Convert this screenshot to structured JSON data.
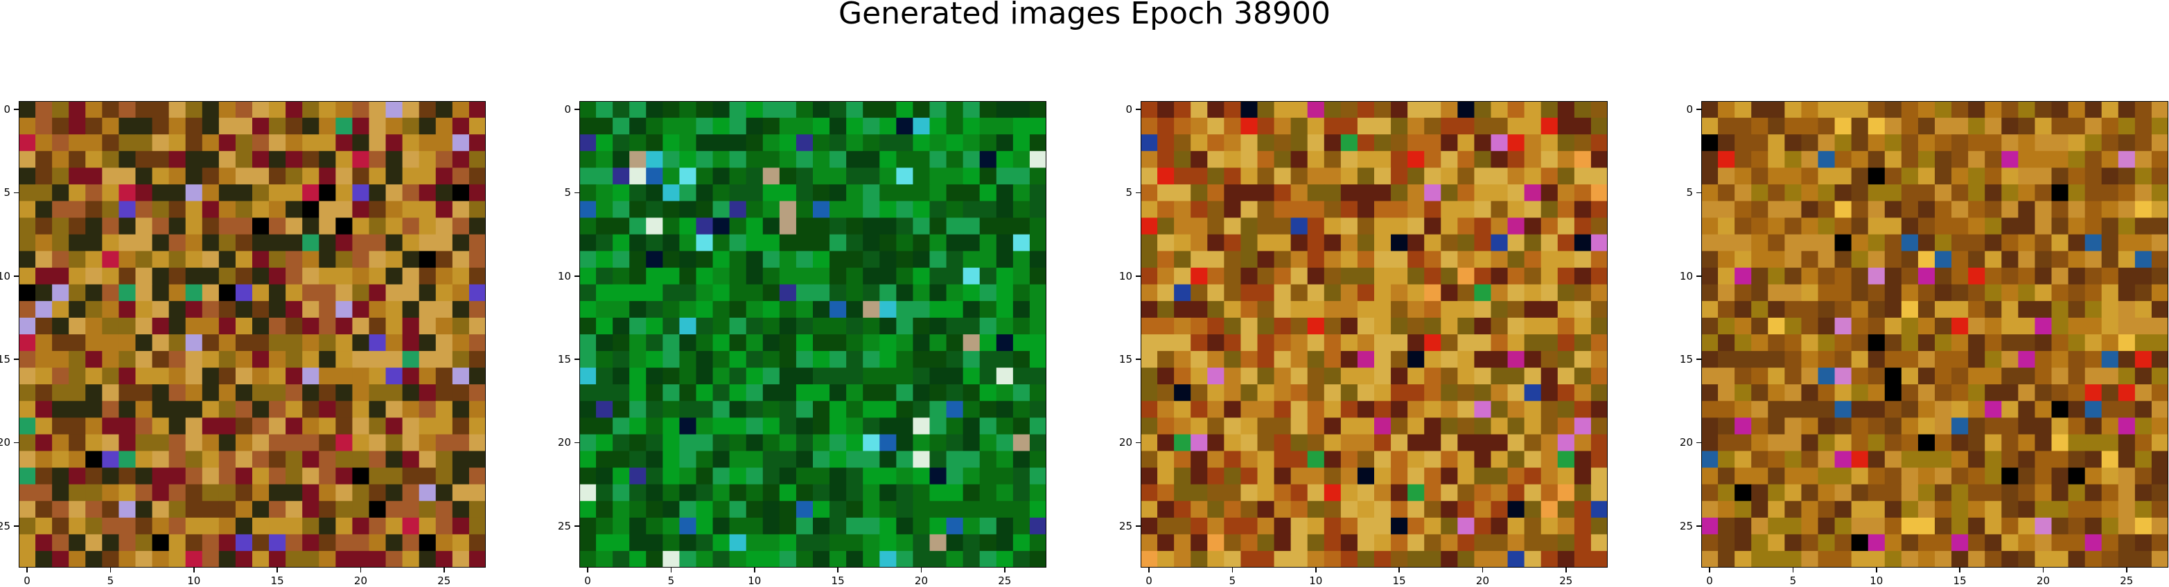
{
  "figure": {
    "title": "Generated images Epoch 38900"
  },
  "chart_data": [
    {
      "type": "heatmap",
      "grid": [
        28,
        28
      ],
      "dominant_palette": [
        "#b37a1c",
        "#c4952a",
        "#8a6b14",
        "#d0a24a",
        "#6b3a10",
        "#a45a2a",
        "#7a1020",
        "#2a2a10"
      ],
      "accent_colors": [
        "#5a40c8",
        "#b0a0e0",
        "#20a060",
        "#c01840",
        "#000000"
      ],
      "xticks": [
        0,
        5,
        10,
        15,
        20,
        25
      ],
      "yticks": [
        0,
        5,
        10,
        15,
        20,
        25
      ],
      "xlim": [
        -0.5,
        27.5
      ],
      "ylim": [
        27.5,
        -0.5
      ]
    },
    {
      "type": "heatmap",
      "grid": [
        28,
        28
      ],
      "dominant_palette": [
        "#0a8a1a",
        "#0a6a10",
        "#04a020",
        "#0c5a18",
        "#0a4a0a",
        "#1aa050",
        "#064010"
      ],
      "accent_colors": [
        "#30c0d0",
        "#1a60b0",
        "#60e0e8",
        "#001030",
        "#e0f0e0",
        "#b8a080",
        "#303090"
      ],
      "xticks": [
        0,
        5,
        10,
        15,
        20,
        25
      ],
      "yticks": [
        0,
        5,
        10,
        15,
        20,
        25
      ],
      "xlim": [
        -0.5,
        27.5
      ],
      "ylim": [
        27.5,
        -0.5
      ]
    },
    {
      "type": "heatmap",
      "grid": [
        28,
        28
      ],
      "dominant_palette": [
        "#c08020",
        "#b86818",
        "#d0a030",
        "#8a5a10",
        "#a04010",
        "#7a6010",
        "#d8b048",
        "#602010"
      ],
      "accent_colors": [
        "#e02010",
        "#f0a040",
        "#2040a0",
        "#c02090",
        "#000820",
        "#d070d0",
        "#20a040"
      ],
      "xticks": [
        0,
        5,
        10,
        15,
        20,
        25
      ],
      "yticks": [
        0,
        5,
        10,
        15,
        20,
        25
      ],
      "xlim": [
        -0.5,
        27.5
      ],
      "ylim": [
        27.5,
        -0.5
      ]
    },
    {
      "type": "heatmap",
      "grid": [
        28,
        28
      ],
      "dominant_palette": [
        "#b87a18",
        "#a06010",
        "#c89030",
        "#8a5010",
        "#704010",
        "#d0a030",
        "#603010",
        "#9a7a10"
      ],
      "accent_colors": [
        "#e02010",
        "#c020a0",
        "#2060a0",
        "#000000",
        "#f0c040",
        "#d080d0"
      ],
      "xticks": [
        0,
        5,
        10,
        15,
        20,
        25
      ],
      "yticks": [
        0,
        5,
        10,
        15,
        20,
        25
      ],
      "xlim": [
        -0.5,
        27.5
      ],
      "ylim": [
        27.5,
        -0.5
      ]
    }
  ]
}
